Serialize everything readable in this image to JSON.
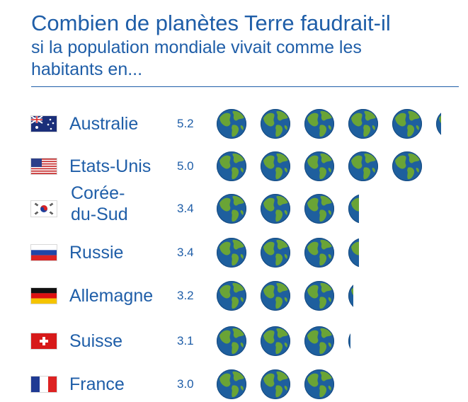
{
  "header": {
    "title": "Combien de planètes Terre faudrait-il",
    "subtitle": "si la population mondiale vivait comme les habitants en..."
  },
  "colors": {
    "text": "#1f5ea8",
    "ocean": "#1e5f9e",
    "land": "#6aa436"
  },
  "icons": {
    "globe": "earth-globe-icon"
  },
  "chart_data": {
    "type": "bar",
    "categories": [
      "Australie",
      "Etats-Unis",
      "Corée-du-Sud",
      "Russie",
      "Allemagne",
      "Suisse",
      "France"
    ],
    "category_labels": [
      "Australie",
      "Etats-Unis",
      "Corée-\ndu-Sud",
      "Russie",
      "Allemagne",
      "Suisse",
      "France"
    ],
    "values": [
      5.2,
      5.0,
      3.4,
      3.4,
      3.2,
      3.1,
      3.0
    ],
    "value_labels": [
      "5.2",
      "5.0",
      "3.4",
      "3.4",
      "3.2",
      "3.1",
      "3.0"
    ],
    "title": "Combien de planètes Terre faudrait-il",
    "subtitle": "si la population mondiale vivait comme les habitants en...",
    "flags": [
      "australia",
      "usa",
      "south-korea",
      "russia",
      "germany",
      "switzerland",
      "france"
    ]
  }
}
